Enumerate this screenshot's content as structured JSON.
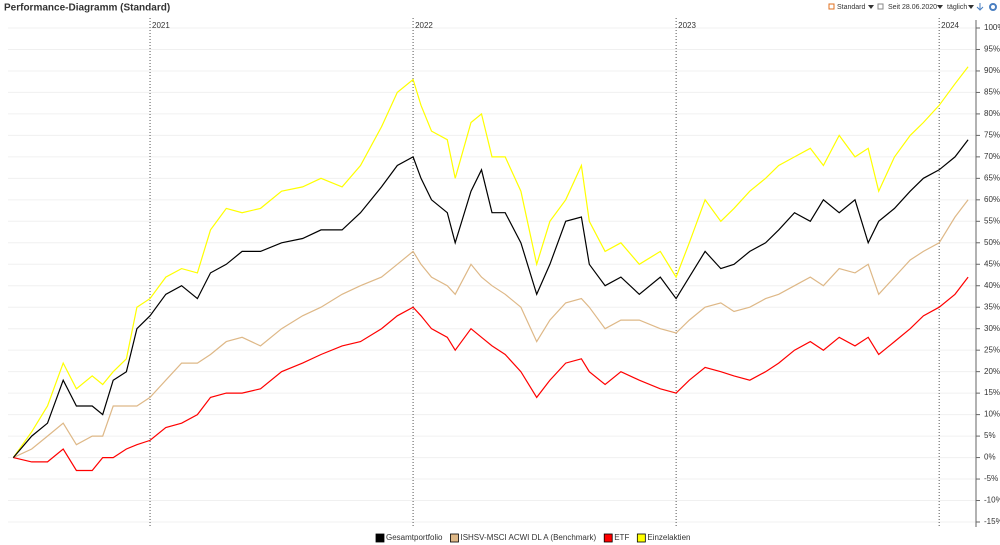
{
  "toolbar": {
    "view": "Standard",
    "since": "Seit 28.06.2020",
    "interval": "täglich"
  },
  "chart_data": {
    "type": "line",
    "title": "Performance-Diagramm (Standard)",
    "x": [
      2020.48,
      2020.55,
      2020.61,
      2020.67,
      2020.72,
      2020.78,
      2020.82,
      2020.86,
      2020.91,
      2020.95,
      2021.0,
      2021.06,
      2021.12,
      2021.18,
      2021.23,
      2021.29,
      2021.35,
      2021.42,
      2021.5,
      2021.58,
      2021.65,
      2021.73,
      2021.8,
      2021.88,
      2021.94,
      2022.0,
      2022.03,
      2022.07,
      2022.13,
      2022.16,
      2022.22,
      2022.26,
      2022.3,
      2022.35,
      2022.41,
      2022.47,
      2022.52,
      2022.58,
      2022.64,
      2022.67,
      2022.73,
      2022.79,
      2022.86,
      2022.94,
      2023.0,
      2023.05,
      2023.11,
      2023.17,
      2023.22,
      2023.28,
      2023.34,
      2023.39,
      2023.45,
      2023.51,
      2023.56,
      2023.62,
      2023.68,
      2023.73,
      2023.77,
      2023.83,
      2023.89,
      2023.94,
      2024.0,
      2024.06,
      2024.11
    ],
    "series": [
      {
        "name": "Gesamtportfolio",
        "color": "#000000",
        "values": [
          0,
          5,
          8,
          18,
          12,
          12,
          10,
          18,
          20,
          30,
          33,
          38,
          40,
          37,
          43,
          45,
          48,
          48,
          50,
          51,
          53,
          53,
          57,
          63,
          68,
          70,
          65,
          60,
          57,
          50,
          62,
          67,
          57,
          57,
          50,
          38,
          45,
          55,
          56,
          45,
          40,
          42,
          38,
          42,
          37,
          42,
          48,
          44,
          45,
          48,
          50,
          53,
          57,
          55,
          60,
          57,
          60,
          50,
          55,
          58,
          62,
          65,
          67,
          70,
          74
        ]
      },
      {
        "name": "ISHSV-MSCI ACWI DL A (Benchmark)",
        "color": "#deb887",
        "values": [
          0,
          2,
          5,
          8,
          3,
          5,
          5,
          12,
          12,
          12,
          14,
          18,
          22,
          22,
          24,
          27,
          28,
          26,
          30,
          33,
          35,
          38,
          40,
          42,
          45,
          48,
          45,
          42,
          40,
          38,
          45,
          42,
          40,
          38,
          35,
          27,
          32,
          36,
          37,
          35,
          30,
          32,
          32,
          30,
          29,
          32,
          35,
          36,
          34,
          35,
          37,
          38,
          40,
          42,
          40,
          44,
          43,
          45,
          38,
          42,
          46,
          48,
          50,
          56,
          60
        ]
      },
      {
        "name": "ETF",
        "color": "#ff0000",
        "values": [
          0,
          -1,
          -1,
          2,
          -3,
          -3,
          0,
          0,
          2,
          3,
          4,
          7,
          8,
          10,
          14,
          15,
          15,
          16,
          20,
          22,
          24,
          26,
          27,
          30,
          33,
          35,
          33,
          30,
          28,
          25,
          30,
          28,
          26,
          24,
          20,
          14,
          18,
          22,
          23,
          20,
          17,
          20,
          18,
          16,
          15,
          18,
          21,
          20,
          19,
          18,
          20,
          22,
          25,
          27,
          25,
          28,
          26,
          28,
          24,
          27,
          30,
          33,
          35,
          38,
          42
        ]
      },
      {
        "name": "Einzelaktien",
        "color": "#ffff00",
        "values": [
          0,
          6,
          12,
          22,
          16,
          19,
          17,
          20,
          23,
          35,
          37,
          42,
          44,
          43,
          53,
          58,
          57,
          58,
          62,
          63,
          65,
          63,
          68,
          77,
          85,
          88,
          82,
          76,
          74,
          65,
          78,
          80,
          70,
          70,
          62,
          45,
          55,
          60,
          68,
          55,
          48,
          50,
          45,
          48,
          42,
          50,
          60,
          55,
          58,
          62,
          65,
          68,
          70,
          72,
          68,
          75,
          70,
          72,
          62,
          70,
          75,
          78,
          82,
          87,
          91
        ]
      }
    ],
    "xlim": [
      2020.46,
      2024.14
    ],
    "xticks": [
      2021,
      2022,
      2023,
      2024
    ],
    "ylim": [
      -15,
      100
    ],
    "yticks": [
      {
        "value": -15,
        "label": "-15%"
      },
      {
        "value": -10,
        "label": "-10%"
      },
      {
        "value": -5,
        "label": "-5%"
      },
      {
        "value": 0,
        "label": "0%"
      },
      {
        "value": 5,
        "label": "5%"
      },
      {
        "value": 10,
        "label": "10%"
      },
      {
        "value": 15,
        "label": "15%"
      },
      {
        "value": 20,
        "label": "20%"
      },
      {
        "value": 25,
        "label": "25%"
      },
      {
        "value": 30,
        "label": "30%"
      },
      {
        "value": 35,
        "label": "35%"
      },
      {
        "value": 40,
        "label": "40%"
      },
      {
        "value": 45,
        "label": "45%"
      },
      {
        "value": 50,
        "label": "50%"
      },
      {
        "value": 55,
        "label": "55%"
      },
      {
        "value": 60,
        "label": "60%"
      },
      {
        "value": 65,
        "label": "65%"
      },
      {
        "value": 70,
        "label": "70%"
      },
      {
        "value": 75,
        "label": "75%"
      },
      {
        "value": 80,
        "label": "80%"
      },
      {
        "value": 85,
        "label": "85%"
      },
      {
        "value": 90,
        "label": "90%"
      },
      {
        "value": 95,
        "label": "95%"
      },
      {
        "value": 100,
        "label": "100%"
      }
    ],
    "grid": true,
    "legend": "bottom"
  }
}
